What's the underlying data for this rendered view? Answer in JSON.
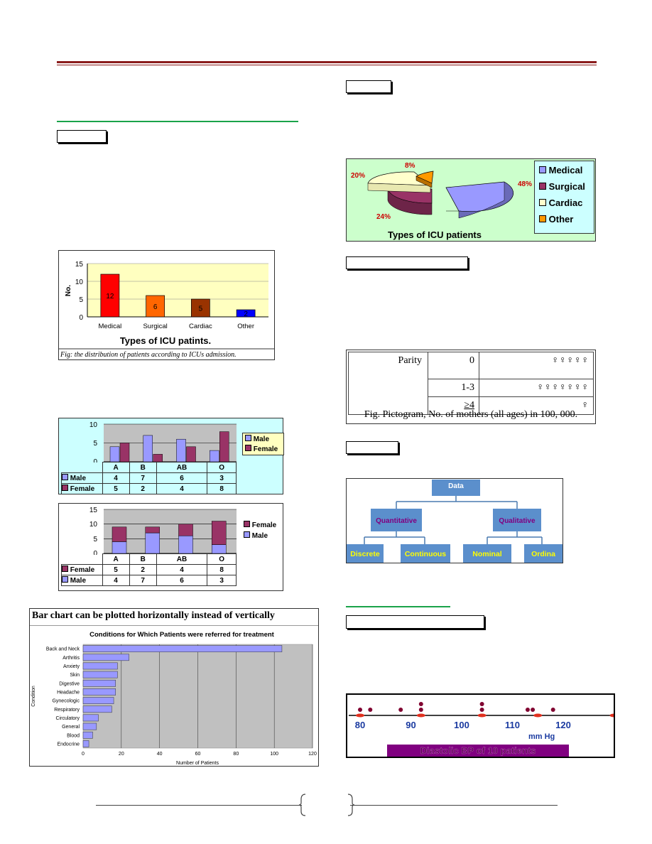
{
  "bar_chart_icu": {
    "ylabel": "No.",
    "yticks": [
      "15",
      "10",
      "5",
      "0"
    ],
    "categories": [
      "Medical",
      "Surgical",
      "Cardiac",
      "Other"
    ],
    "values": [
      12,
      6,
      5,
      2
    ],
    "value_labels": [
      "12",
      "6",
      "5",
      "2"
    ],
    "title": "Types of ICU patints.",
    "caption": "Fig: the distribution of patients according to ICUs admission."
  },
  "grouped_chart": {
    "yticks": [
      "10",
      "5",
      "0"
    ],
    "categories": [
      "A",
      "B",
      "AB",
      "O"
    ],
    "legend": [
      "Male",
      "Female"
    ],
    "rows": [
      {
        "label": "Male",
        "values": [
          "4",
          "7",
          "6",
          "3"
        ]
      },
      {
        "label": "Female",
        "values": [
          "5",
          "2",
          "4",
          "8"
        ]
      }
    ]
  },
  "stacked_chart": {
    "yticks": [
      "15",
      "10",
      "5",
      "0"
    ],
    "categories": [
      "A",
      "B",
      "AB",
      "O"
    ],
    "legend": [
      "Female",
      "Male"
    ],
    "rows": [
      {
        "label": "Female",
        "values": [
          "5",
          "2",
          "4",
          "8"
        ]
      },
      {
        "label": "Male",
        "values": [
          "4",
          "7",
          "6",
          "3"
        ]
      }
    ]
  },
  "horizontal_chart": {
    "heading": "Bar chart can be plotted horizontally instead of vertically",
    "title": "Conditions for Which Patients were referred for treatment",
    "ylabel": "Condition",
    "xlabel": "Number of Patients",
    "xticks": [
      "0",
      "20",
      "40",
      "60",
      "80",
      "100",
      "120"
    ],
    "categories": [
      "Back and Neck",
      "Arthritis",
      "Anxiety",
      "Skin",
      "Digestive",
      "Headache",
      "Gynecologic",
      "Respiratory",
      "Circulatory",
      "General",
      "Blood",
      "Endocrine"
    ]
  },
  "pie_chart": {
    "labels": [
      "Medical",
      "Surgical",
      "Cardiac",
      "Other"
    ],
    "percent_labels": [
      "48%",
      "24%",
      "20%",
      "8%"
    ],
    "title": "Types of ICU patients",
    "colors": [
      "#9999ff",
      "#993366",
      "#ffffcc",
      "#ff9900"
    ]
  },
  "pictogram": {
    "row_header": "Parity",
    "rows": [
      {
        "label": "0",
        "symbols": "♀♀♀♀♀"
      },
      {
        "label": "1-3",
        "symbols": "♀♀♀♀♀♀♀"
      },
      {
        "label": "≥4",
        "symbols": "♀"
      }
    ],
    "caption": "Fig. Pictogram, No. of mothers (all ages) in 100, 000."
  },
  "data_tree": {
    "root": "Data",
    "level1": [
      "Quantitative",
      "Qualitative"
    ],
    "level2": [
      "Discrete",
      "Continuous",
      "Nominal",
      "Ordina"
    ]
  },
  "dot_plot": {
    "ticks": [
      "80",
      "90",
      "100",
      "110",
      "120"
    ],
    "unit": "mm Hg",
    "title": "Diastolic BP of 10 patients"
  },
  "chart_data": [
    {
      "type": "bar",
      "categories": [
        "Medical",
        "Surgical",
        "Cardiac",
        "Other"
      ],
      "values": [
        12,
        6,
        5,
        2
      ],
      "ylabel": "No.",
      "title": "Types of ICU patints.",
      "ylim": [
        0,
        15
      ]
    },
    {
      "type": "bar",
      "categories": [
        "A",
        "B",
        "AB",
        "O"
      ],
      "series": [
        {
          "name": "Male",
          "values": [
            4,
            7,
            6,
            3
          ]
        },
        {
          "name": "Female",
          "values": [
            5,
            2,
            4,
            8
          ]
        }
      ],
      "ylim": [
        0,
        10
      ]
    },
    {
      "type": "bar",
      "stacked": true,
      "categories": [
        "A",
        "B",
        "AB",
        "O"
      ],
      "series": [
        {
          "name": "Male",
          "values": [
            4,
            7,
            6,
            3
          ]
        },
        {
          "name": "Female",
          "values": [
            5,
            2,
            4,
            8
          ]
        }
      ],
      "ylim": [
        0,
        15
      ]
    },
    {
      "type": "bar",
      "orientation": "horizontal",
      "title": "Conditions for Which Patients were referred for treatment",
      "xlabel": "Number of Patients",
      "ylabel": "Condition",
      "categories": [
        "Back and Neck",
        "Arthritis",
        "Anxiety",
        "Skin",
        "Digestive",
        "Headache",
        "Gynecologic",
        "Respiratory",
        "Circulatory",
        "General",
        "Blood",
        "Endocrine"
      ],
      "values": [
        104,
        24,
        18,
        18,
        17,
        17,
        16,
        15,
        8,
        7,
        5,
        3
      ],
      "xlim": [
        0,
        120
      ]
    },
    {
      "type": "pie",
      "labels": [
        "Medical",
        "Surgical",
        "Cardiac",
        "Other"
      ],
      "values": [
        48,
        24,
        20,
        8
      ],
      "title": "Types of ICU patients"
    },
    {
      "type": "scatter",
      "title": "Diastolic BP of 10 patients",
      "xlabel": "mm Hg",
      "values": [
        80,
        82,
        88,
        92,
        92,
        104,
        104,
        113,
        114,
        118
      ],
      "xlim": [
        80,
        130
      ]
    }
  ]
}
